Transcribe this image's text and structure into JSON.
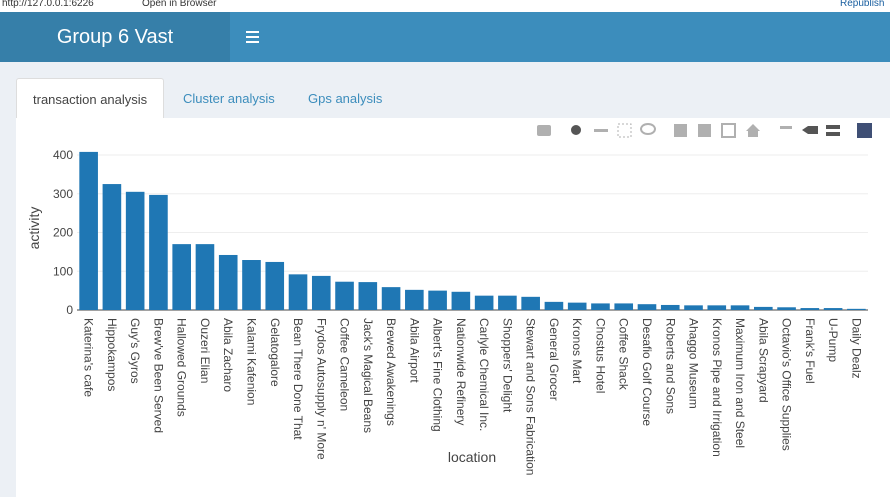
{
  "browser_bar": {
    "url": "http://127.0.0.1:6226",
    "open_in_browser": "Open in Browser",
    "republish": "Republish"
  },
  "header": {
    "title": "Group 6 Vast"
  },
  "tabs": [
    "transaction analysis",
    "Cluster analysis",
    "Gps analysis"
  ],
  "chart_data": {
    "type": "bar",
    "xlabel": "location",
    "ylabel": "activity",
    "color": "#1f77b4",
    "grid": true,
    "categories": [
      "Katerina's cafe",
      "Hippokampos",
      "Guy's Gyros",
      "Brew've Been Served",
      "Hallowed Grounds",
      "Ouzeri Elian",
      "Abila Zacharo",
      "Kalami Kafenion",
      "Gelatogalore",
      "Bean There Done That",
      "Frydos Autosupply n' More",
      "Coffee Cameleon",
      "Jack's Magical Beans",
      "Brewed Awakenings",
      "Abila Airport",
      "Albert's Fine Clothing",
      "Nationwide Refinery",
      "Carlyle Chemical Inc.",
      "Shoppers' Delight",
      "Stewart and Sons Fabrication",
      "General Grocer",
      "Kronos Mart",
      "Chostus Hotel",
      "Coffee Shack",
      "Desafio Golf Course",
      "Roberts and Sons",
      "Ahaggo Museum",
      "Kronos Pipe and Irrigation",
      "Maximum Iron and Steel",
      "Abila Scrapyard",
      "Octavio's Office Supplies",
      "Frank's Fuel",
      "U-Pump",
      "Daily Dealz"
    ],
    "values": [
      408,
      325,
      305,
      297,
      170,
      170,
      142,
      129,
      124,
      92,
      88,
      73,
      72,
      59,
      52,
      50,
      47,
      37,
      37,
      34,
      21,
      19,
      17,
      17,
      15,
      13,
      12,
      12,
      12,
      8,
      7,
      5,
      5,
      3
    ],
    "ylim": [
      0,
      420
    ],
    "yticks": [
      0,
      100,
      200,
      300,
      400
    ]
  }
}
